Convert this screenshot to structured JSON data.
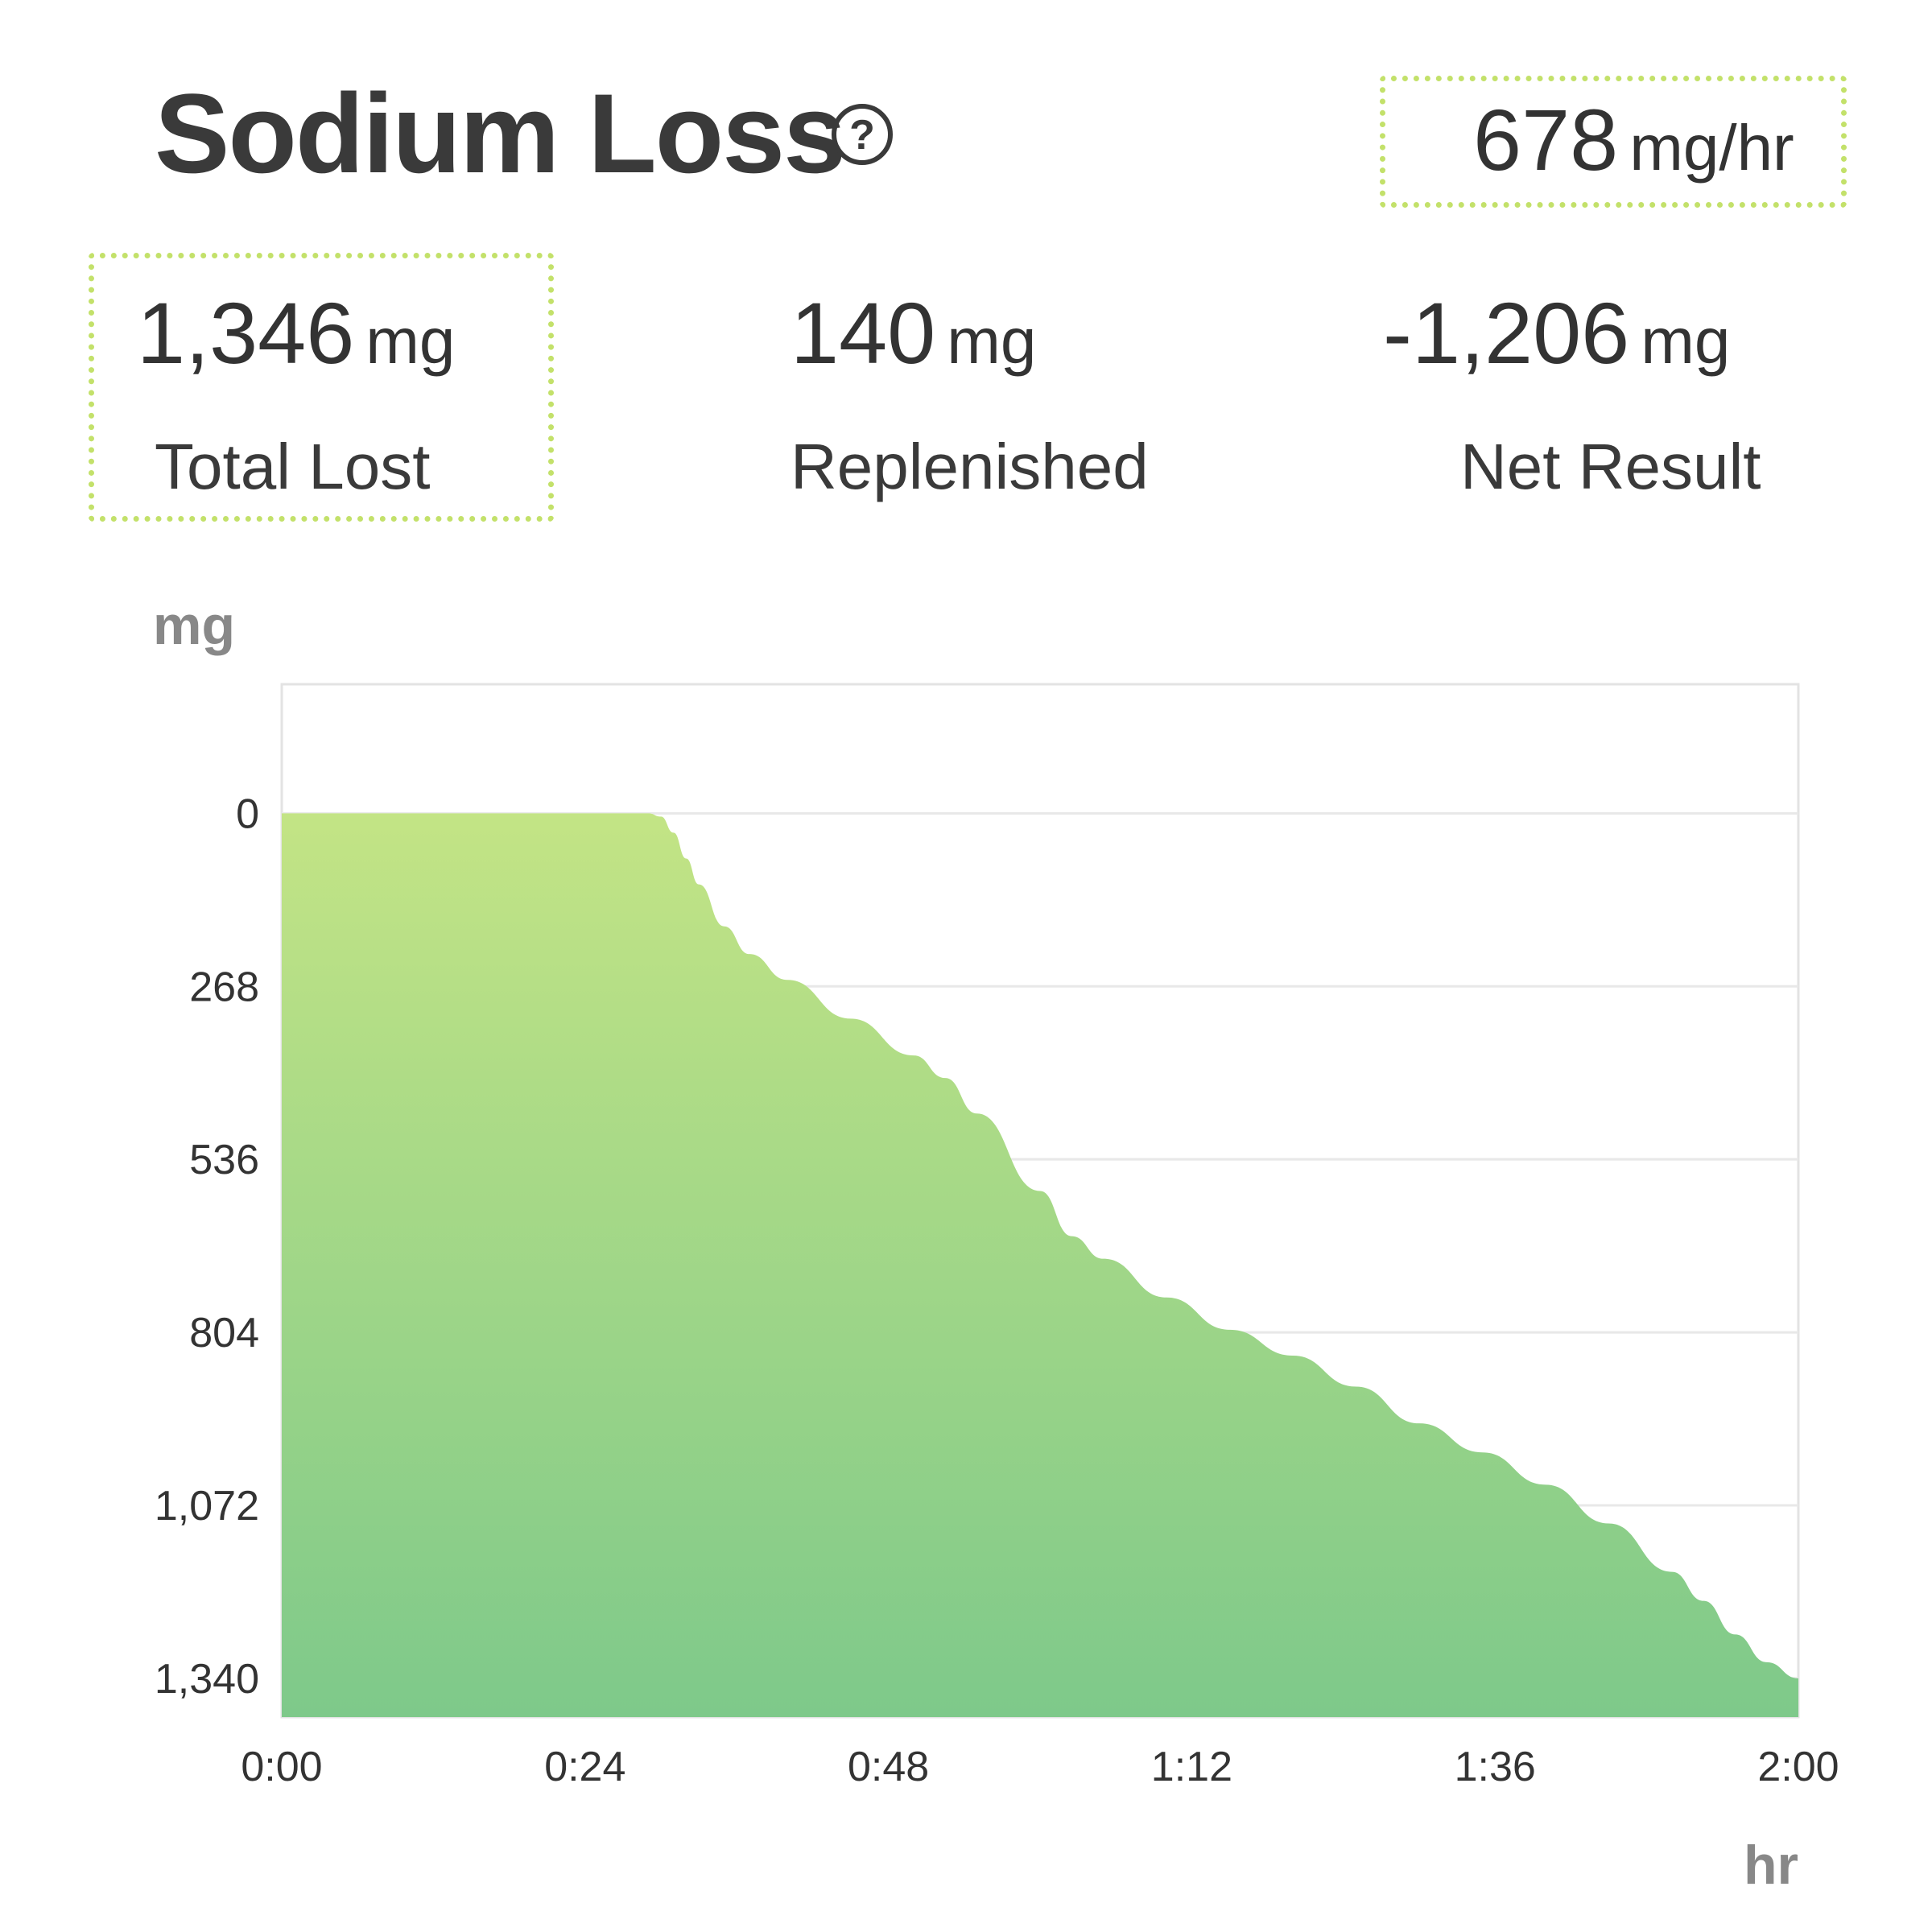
{
  "header": {
    "title": "Sodium Loss",
    "help_icon": "question-circle-icon",
    "rate_value": "678",
    "rate_unit": "mg/hr"
  },
  "stats": [
    {
      "value": "1,346",
      "unit": "mg",
      "label": "Total Lost"
    },
    {
      "value": "140",
      "unit": "mg",
      "label": "Replenished"
    },
    {
      "value": "-1,206",
      "unit": "mg",
      "label": "Net Result"
    }
  ],
  "colors": {
    "accent": "#c3e16a",
    "fill_top": "#c3e485",
    "fill_bottom": "#7ec98a"
  },
  "chart_data": {
    "type": "area",
    "xlabel": "hr",
    "ylabel": "mg",
    "x_ticks": [
      "0:00",
      "0:24",
      "0:48",
      "1:12",
      "1:36",
      "2:00"
    ],
    "y_ticks": [
      "0",
      "268",
      "536",
      "804",
      "1,072",
      "1,340"
    ],
    "xlim": [
      0,
      120
    ],
    "ylim": [
      -200,
      1400
    ],
    "y_inverted": true,
    "grid": true,
    "x": [
      0,
      10,
      20,
      29,
      30,
      31,
      32,
      33,
      35,
      37,
      40,
      45,
      50,
      52.5,
      55,
      60,
      62.5,
      65,
      70,
      75,
      80,
      85,
      90,
      95,
      100,
      105,
      110,
      112.5,
      115,
      117.5,
      120
    ],
    "values": [
      0,
      0,
      0,
      0,
      5,
      30,
      70,
      110,
      175,
      218,
      258,
      318,
      375,
      410,
      465,
      585,
      655,
      690,
      750,
      800,
      840,
      888,
      945,
      990,
      1040,
      1100,
      1175,
      1220,
      1272,
      1315,
      1340
    ]
  }
}
